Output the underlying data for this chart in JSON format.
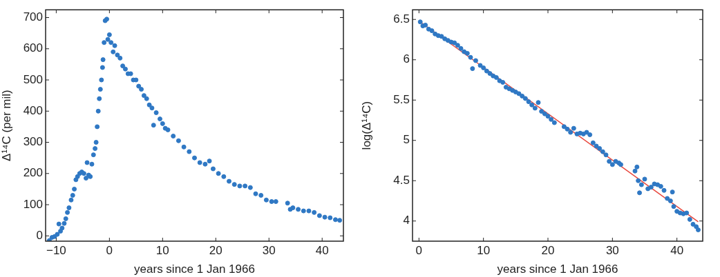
{
  "chart_data": [
    {
      "type": "scatter",
      "xlabel": "years since 1 Jan 1966",
      "ylabel": "Δ¹⁴C (per mil)",
      "xlim": [
        -12,
        44
      ],
      "ylim": [
        -17,
        725
      ],
      "xticks": [
        {
          "value": -10,
          "label": "−10"
        },
        0,
        10,
        20,
        30,
        40
      ],
      "yticks": [
        0,
        100,
        200,
        300,
        400,
        500,
        600,
        700
      ],
      "grid": false,
      "marker": "circle",
      "series": [
        {
          "color": "#2f78c4",
          "x": [
            -11.3,
            -10.8,
            -10.3,
            -9.8,
            -9.5,
            -9.2,
            -8.9,
            -8.5,
            -8.2,
            -7.9,
            -7.6,
            -7.2,
            -6.9,
            -6.6,
            -6.3,
            -6.0,
            -5.6,
            -5.2,
            -4.8,
            -4.4,
            -4.2,
            -3.9,
            -3.6,
            -3.3,
            -3.0,
            -2.7,
            -2.5,
            -2.3,
            -2.1,
            -1.9,
            -1.7,
            -1.5,
            -1.3,
            -1.2,
            -1.0,
            -0.8,
            -0.5,
            -0.3,
            0.0,
            0.3,
            0.7,
            1.0,
            1.5,
            2.0,
            2.5,
            3.0,
            3.5,
            4.0,
            4.5,
            5.0,
            5.5,
            6.0,
            6.5,
            7.0,
            7.5,
            8.0,
            8.3,
            8.8,
            9.5,
            10.0,
            10.5,
            11.0,
            12.0,
            13.0,
            14.0,
            15.0,
            16.0,
            17.0,
            18.0,
            18.8,
            19.5,
            20.5,
            21.5,
            22.5,
            23.5,
            24.5,
            25.5,
            26.5,
            27.5,
            28.5,
            29.5,
            30.5,
            31.3,
            33.5,
            34.0,
            34.5,
            35.5,
            36.5,
            37.5,
            38.5,
            39.5,
            40.5,
            41.5,
            42.5,
            43.3
          ],
          "values": [
            -15,
            -5,
            -2,
            5,
            38,
            15,
            25,
            40,
            55,
            75,
            90,
            115,
            130,
            150,
            180,
            190,
            200,
            205,
            200,
            185,
            235,
            195,
            190,
            230,
            260,
            280,
            300,
            350,
            400,
            440,
            470,
            500,
            540,
            565,
            620,
            690,
            695,
            630,
            645,
            620,
            590,
            610,
            580,
            570,
            545,
            535,
            520,
            520,
            500,
            500,
            480,
            470,
            450,
            440,
            420,
            410,
            355,
            395,
            375,
            360,
            345,
            340,
            320,
            305,
            285,
            270,
            250,
            235,
            230,
            240,
            215,
            200,
            190,
            175,
            165,
            160,
            160,
            155,
            135,
            130,
            115,
            110,
            110,
            105,
            85,
            90,
            85,
            80,
            80,
            75,
            65,
            60,
            58,
            52,
            50
          ]
        }
      ]
    },
    {
      "type": "scatter",
      "xlabel": "years since 1 Jan 1966",
      "ylabel": "log(Δ¹⁴C)",
      "xlim": [
        -1,
        44
      ],
      "ylim": [
        3.75,
        6.62
      ],
      "xticks": [
        0,
        10,
        20,
        30,
        40
      ],
      "yticks": [
        4,
        4.5,
        5,
        5.5,
        6,
        6.5
      ],
      "grid": false,
      "marker": "circle",
      "series": [
        {
          "color": "#2f78c4",
          "x": [
            0.2,
            0.6,
            1,
            1.5,
            2,
            2.5,
            3,
            3.5,
            4,
            4.5,
            5,
            5.5,
            6,
            6.5,
            7,
            7.5,
            8,
            8.3,
            8.8,
            9.5,
            10,
            10.5,
            11,
            11.5,
            12,
            12.5,
            13,
            13.5,
            14,
            14.5,
            15,
            15.5,
            16,
            16.5,
            17,
            17.5,
            18,
            18.5,
            19,
            19.5,
            20,
            20.5,
            21,
            22.5,
            23,
            23.5,
            24,
            24.5,
            25,
            25.5,
            26,
            26.5,
            27,
            27.5,
            28,
            28.5,
            29,
            29.5,
            30,
            30.5,
            31,
            31.3,
            33.5,
            33.8,
            34,
            34.2,
            34.5,
            35,
            35.5,
            36,
            36.5,
            37,
            37.5,
            38,
            38.5,
            39,
            39.3,
            39.5,
            40,
            40.5,
            41,
            41.5,
            42,
            42.5,
            43,
            43.3
          ],
          "values": [
            6.47,
            6.42,
            6.43,
            6.38,
            6.36,
            6.32,
            6.3,
            6.29,
            6.26,
            6.24,
            6.22,
            6.21,
            6.18,
            6.14,
            6.1,
            6.08,
            6.03,
            5.89,
            5.99,
            5.93,
            5.9,
            5.86,
            5.83,
            5.8,
            5.78,
            5.74,
            5.72,
            5.66,
            5.64,
            5.62,
            5.6,
            5.58,
            5.55,
            5.52,
            5.48,
            5.44,
            5.4,
            5.47,
            5.36,
            5.33,
            5.3,
            5.26,
            5.22,
            5.17,
            5.14,
            5.1,
            5.15,
            5.08,
            5.09,
            5.08,
            5.1,
            5.07,
            4.97,
            4.93,
            4.9,
            4.86,
            4.82,
            4.74,
            4.7,
            4.74,
            4.72,
            4.7,
            4.62,
            4.67,
            4.5,
            4.35,
            4.45,
            4.52,
            4.4,
            4.42,
            4.46,
            4.45,
            4.43,
            4.38,
            4.28,
            4.25,
            4.36,
            4.18,
            4.12,
            4.1,
            4.09,
            4.1,
            4.02,
            3.96,
            3.93,
            3.89
          ]
        },
        {
          "type": "line",
          "marker": "none",
          "color": "#e8463c",
          "x": [
            0.2,
            43.3
          ],
          "values": [
            6.47,
            3.99
          ]
        }
      ]
    }
  ]
}
